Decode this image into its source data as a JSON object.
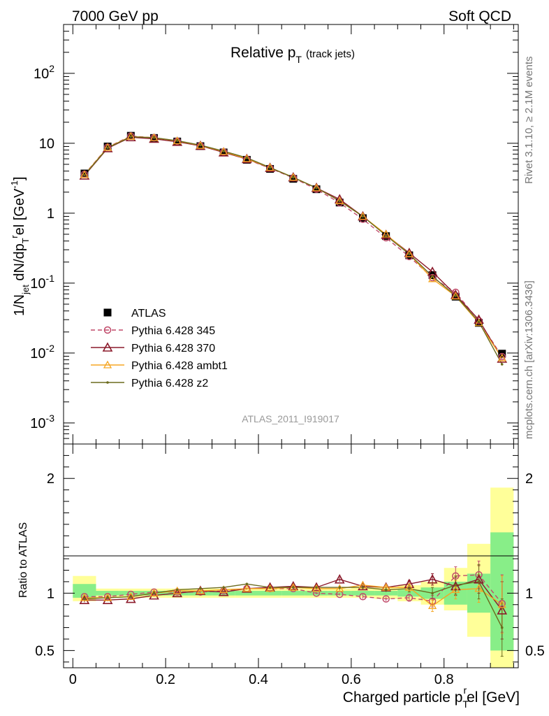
{
  "header": {
    "left": "7000 GeV pp",
    "right": "Soft QCD"
  },
  "side_labels": {
    "rivet": "Rivet 3.1.10, ≥ 2.1M events",
    "mcplots": "mcplots.cern.ch [arXiv:1306.3436]"
  },
  "analysis_id": "ATLAS_2011_I919017",
  "chart_data": [
    {
      "type": "line",
      "title": "Relative p",
      "title_sub": "T",
      "title_note": "(track jets)",
      "ylabel": {
        "a": "1/N",
        "a_sub": "jet",
        "b": " dN/dp",
        "b_sub": "T",
        "b_sup": "r",
        "c": "el [GeV",
        "c_sup": "-1",
        "d": "]"
      },
      "yscale": "log",
      "ylim": [
        0.0005,
        500
      ],
      "yticks": [
        {
          "v": 0.001,
          "base": "10",
          "exp": "-3"
        },
        {
          "v": 0.01,
          "base": "10",
          "exp": "-2"
        },
        {
          "v": 0.1,
          "base": "10",
          "exp": "-1"
        },
        {
          "v": 1,
          "label": "1"
        },
        {
          "v": 10,
          "label": "10"
        },
        {
          "v": 100,
          "base": "10",
          "exp": "2"
        }
      ],
      "xlim": [
        -0.02,
        0.96
      ],
      "x": [
        0.025,
        0.075,
        0.125,
        0.175,
        0.225,
        0.275,
        0.325,
        0.375,
        0.425,
        0.475,
        0.525,
        0.575,
        0.625,
        0.675,
        0.725,
        0.775,
        0.825,
        0.875,
        0.925
      ],
      "series": [
        {
          "name": "ATLAS",
          "color": "#000000",
          "marker": "square",
          "dash": "",
          "values": [
            3.7,
            9.0,
            12.8,
            11.9,
            10.6,
            9.1,
            7.4,
            5.8,
            4.3,
            3.1,
            2.2,
            1.42,
            0.85,
            0.47,
            0.25,
            0.13,
            0.064,
            0.027,
            0.0098
          ]
        },
        {
          "name": "Pythia 6.428 345",
          "color": "#c14a6a",
          "marker": "circle",
          "dash": "6,4",
          "values": [
            3.6,
            8.8,
            12.7,
            12.0,
            10.7,
            9.2,
            7.5,
            5.9,
            4.4,
            3.2,
            2.2,
            1.41,
            0.82,
            0.445,
            0.24,
            0.12,
            0.074,
            0.029,
            0.0089
          ]
        },
        {
          "name": "Pythia 6.428 370",
          "color": "#8b1a2b",
          "marker": "triangle",
          "dash": "",
          "values": [
            3.45,
            8.5,
            12.2,
            11.6,
            10.5,
            9.2,
            7.4,
            5.95,
            4.45,
            3.25,
            2.3,
            1.58,
            0.9,
            0.49,
            0.27,
            0.145,
            0.068,
            0.03,
            0.0083
          ]
        },
        {
          "name": "Pythia 6.428 ambt1",
          "color": "#f5a623",
          "marker": "triangle-open",
          "dash": "",
          "values": [
            3.55,
            8.7,
            12.5,
            12.0,
            10.8,
            9.3,
            7.6,
            6.0,
            4.5,
            3.25,
            2.3,
            1.5,
            0.9,
            0.5,
            0.26,
            0.115,
            0.065,
            0.027,
            0.0085
          ]
        },
        {
          "name": "Pythia 6.428 z2",
          "color": "#6b6b1e",
          "marker": "dot",
          "dash": "",
          "values": [
            3.5,
            8.6,
            12.4,
            12.0,
            10.9,
            9.4,
            7.7,
            6.2,
            4.5,
            3.25,
            2.3,
            1.5,
            0.9,
            0.48,
            0.26,
            0.125,
            0.066,
            0.028,
            0.0069
          ]
        }
      ]
    },
    {
      "type": "line",
      "ylabel": "Ratio to ATLAS",
      "xlabel": {
        "a": "Charged particle p",
        "sub": "T",
        "sup": "r",
        "b": "el [GeV]"
      },
      "ylim": [
        0.35,
        2.3
      ],
      "yticks": [
        0.5,
        1,
        2
      ],
      "ytick_labels": [
        "0.5",
        "1",
        "2"
      ],
      "xlim": [
        -0.02,
        0.96
      ],
      "xticks": [
        0,
        0.2,
        0.4,
        0.6,
        0.8
      ],
      "xtick_labels": [
        "0",
        "0.2",
        "0.4",
        "0.6",
        "0.8"
      ],
      "x": [
        0.025,
        0.075,
        0.125,
        0.175,
        0.225,
        0.275,
        0.325,
        0.375,
        0.425,
        0.475,
        0.525,
        0.575,
        0.625,
        0.675,
        0.725,
        0.775,
        0.825,
        0.875,
        0.925
      ],
      "bin_edges": [
        0,
        0.05,
        0.1,
        0.15,
        0.2,
        0.25,
        0.3,
        0.35,
        0.4,
        0.45,
        0.5,
        0.55,
        0.6,
        0.65,
        0.7,
        0.75,
        0.8,
        0.85,
        0.9,
        0.95
      ],
      "band_stat": [
        [
          0.96,
          1.08
        ],
        [
          0.98,
          1.02
        ],
        [
          0.98,
          1.02
        ],
        [
          0.98,
          1.02
        ],
        [
          0.98,
          1.02
        ],
        [
          0.98,
          1.02
        ],
        [
          0.98,
          1.02
        ],
        [
          0.98,
          1.02
        ],
        [
          0.98,
          1.02
        ],
        [
          0.98,
          1.02
        ],
        [
          0.98,
          1.02
        ],
        [
          0.98,
          1.02
        ],
        [
          0.98,
          1.02
        ],
        [
          0.98,
          1.02
        ],
        [
          0.97,
          1.03
        ],
        [
          0.95,
          1.05
        ],
        [
          0.9,
          1.1
        ],
        [
          0.83,
          1.17
        ],
        [
          0.5,
          1.53
        ]
      ],
      "band_syst": [
        [
          0.93,
          1.15
        ],
        [
          0.96,
          1.04
        ],
        [
          0.96,
          1.04
        ],
        [
          0.96,
          1.04
        ],
        [
          0.96,
          1.04
        ],
        [
          0.96,
          1.04
        ],
        [
          0.96,
          1.04
        ],
        [
          0.96,
          1.04
        ],
        [
          0.96,
          1.04
        ],
        [
          0.96,
          1.04
        ],
        [
          0.96,
          1.04
        ],
        [
          0.96,
          1.04
        ],
        [
          0.96,
          1.05
        ],
        [
          0.95,
          1.05
        ],
        [
          0.93,
          1.07
        ],
        [
          0.9,
          1.1
        ],
        [
          0.85,
          1.22
        ],
        [
          0.62,
          1.43
        ],
        [
          0.35,
          1.92
        ]
      ],
      "series": [
        {
          "name": "Pythia 6.428 345",
          "color": "#c14a6a",
          "marker": "circle",
          "dash": "6,4",
          "values": [
            0.97,
            0.97,
            0.99,
            1.01,
            1.01,
            1.01,
            1.02,
            1.04,
            1.04,
            1.04,
            1.0,
            0.99,
            0.97,
            0.95,
            0.96,
            0.93,
            1.15,
            1.16,
            0.91
          ],
          "err": [
            0.02,
            0.01,
            0.01,
            0.01,
            0.01,
            0.01,
            0.01,
            0.01,
            0.01,
            0.01,
            0.01,
            0.01,
            0.02,
            0.02,
            0.03,
            0.05,
            0.08,
            0.12,
            0.25
          ]
        },
        {
          "name": "Pythia 6.428 370",
          "color": "#8b1a2b",
          "marker": "triangle",
          "dash": "",
          "values": [
            0.94,
            0.94,
            0.95,
            0.98,
            1.0,
            1.02,
            1.01,
            1.04,
            1.05,
            1.06,
            1.05,
            1.12,
            1.06,
            1.05,
            1.08,
            1.12,
            1.06,
            1.12,
            0.85
          ],
          "err": [
            0.02,
            0.01,
            0.01,
            0.01,
            0.01,
            0.01,
            0.01,
            0.01,
            0.01,
            0.01,
            0.01,
            0.02,
            0.02,
            0.02,
            0.03,
            0.05,
            0.08,
            0.12,
            0.25
          ]
        },
        {
          "name": "Pythia 6.428 ambt1",
          "color": "#f5a623",
          "marker": "triangle-open",
          "dash": "",
          "values": [
            0.96,
            0.96,
            0.97,
            1.0,
            1.02,
            1.02,
            1.03,
            1.04,
            1.04,
            1.05,
            1.04,
            1.04,
            1.07,
            1.05,
            1.05,
            0.89,
            1.03,
            1.04,
            0.9
          ],
          "err": [
            0.02,
            0.01,
            0.01,
            0.01,
            0.01,
            0.01,
            0.01,
            0.01,
            0.01,
            0.01,
            0.01,
            0.02,
            0.02,
            0.02,
            0.03,
            0.05,
            0.08,
            0.12,
            0.25
          ]
        },
        {
          "name": "Pythia 6.428 z2",
          "color": "#6b6b1e",
          "marker": "dot",
          "dash": "",
          "values": [
            0.95,
            0.96,
            0.97,
            1.0,
            1.03,
            1.04,
            1.05,
            1.08,
            1.05,
            1.05,
            1.05,
            1.05,
            1.05,
            1.03,
            1.04,
            1.0,
            1.07,
            1.1,
            0.7
          ],
          "err": [
            0.02,
            0.01,
            0.01,
            0.01,
            0.01,
            0.01,
            0.01,
            0.01,
            0.01,
            0.01,
            0.01,
            0.02,
            0.02,
            0.02,
            0.03,
            0.05,
            0.08,
            0.15,
            0.25
          ]
        }
      ]
    }
  ]
}
